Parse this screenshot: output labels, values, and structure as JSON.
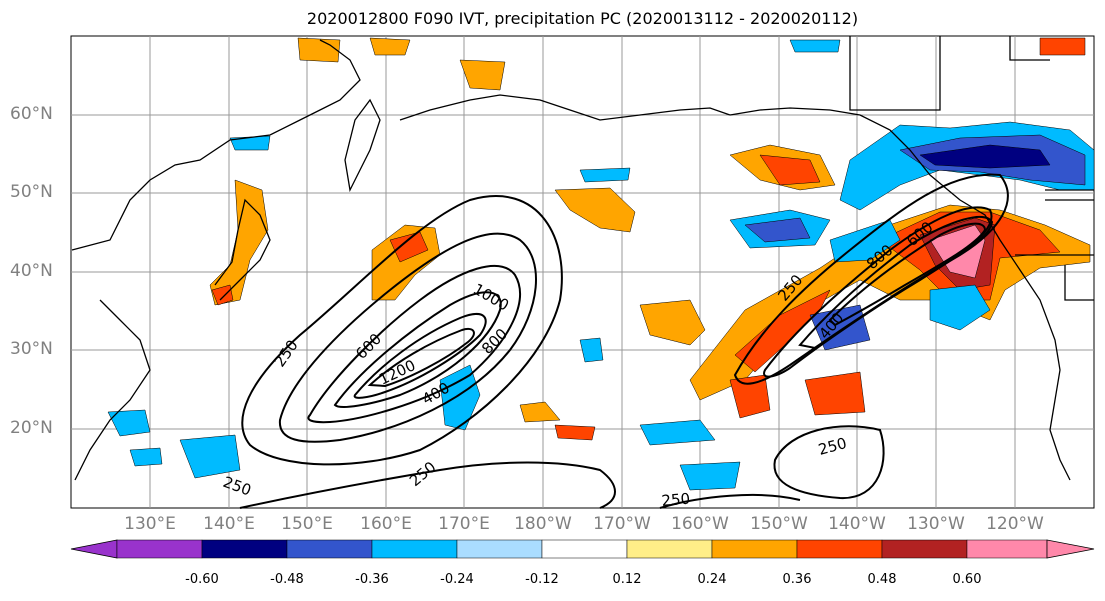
{
  "title": "2020012800 F090 IVT, precipitation PC (2020013112 - 2020020112)",
  "lat_labels": [
    "60°N",
    "50°N",
    "40°N",
    "30°N",
    "20°N"
  ],
  "lon_labels": [
    "130°E",
    "140°E",
    "150°E",
    "160°E",
    "170°E",
    "180°W",
    "170°W",
    "160°W",
    "150°W",
    "140°W",
    "130°W",
    "120°W"
  ],
  "ivt_contour_labels": [
    "250",
    "400",
    "600",
    "800",
    "1000",
    "1200",
    "250",
    "400",
    "600",
    "800",
    "250",
    "250",
    "250",
    "250"
  ],
  "colorbar": {
    "colors": [
      "#9933cc",
      "#000080",
      "#3355cc",
      "#00bbff",
      "#aaddff",
      "#ffffff",
      "#ffee88",
      "#ffa500",
      "#ff4400",
      "#b22222",
      "#ff88aa"
    ],
    "tick_labels": [
      "-0.60",
      "-0.48",
      "-0.36",
      "-0.24",
      "-0.12",
      "0.12",
      "0.24",
      "0.36",
      "0.48",
      "0.60"
    ]
  },
  "colors": {
    "ocean": "#ffffff",
    "grid": "#999999",
    "coast": "#000000"
  }
}
